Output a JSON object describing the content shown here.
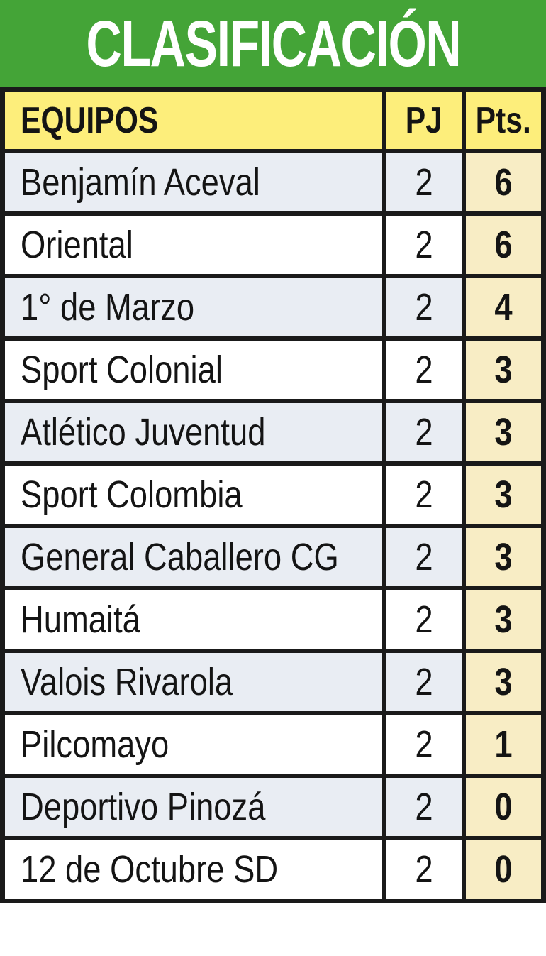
{
  "banner": {
    "title": "CLASIFICACIÓN"
  },
  "colors": {
    "green": "#44a437",
    "header-yellow": "#fdee7b",
    "pts-cream": "#f8edc5",
    "alt-row": "#e9edf3",
    "plain-row": "#ffffff",
    "border": "#1a1a1a",
    "text": "#141414"
  },
  "chart_data": {
    "type": "table",
    "title": "CLASIFICACIÓN",
    "columns": [
      "EQUIPOS",
      "PJ",
      "Pts."
    ],
    "rows": [
      {
        "team": "Benjamín Aceval",
        "pj": "2",
        "pts": "6"
      },
      {
        "team": "Oriental",
        "pj": "2",
        "pts": "6"
      },
      {
        "team": "1° de Marzo",
        "pj": "2",
        "pts": "4"
      },
      {
        "team": "Sport Colonial",
        "pj": "2",
        "pts": "3"
      },
      {
        "team": "Atlético Juventud",
        "pj": "2",
        "pts": "3"
      },
      {
        "team": "Sport Colombia",
        "pj": "2",
        "pts": "3"
      },
      {
        "team": "General Caballero CG",
        "pj": "2",
        "pts": "3"
      },
      {
        "team": "Humaitá",
        "pj": "2",
        "pts": "3"
      },
      {
        "team": "Valois Rivarola",
        "pj": "2",
        "pts": "3"
      },
      {
        "team": "Pilcomayo",
        "pj": "2",
        "pts": "1"
      },
      {
        "team": "Deportivo Pinozá",
        "pj": "2",
        "pts": "0"
      },
      {
        "team": "12 de Octubre SD",
        "pj": "2",
        "pts": "0"
      }
    ]
  }
}
